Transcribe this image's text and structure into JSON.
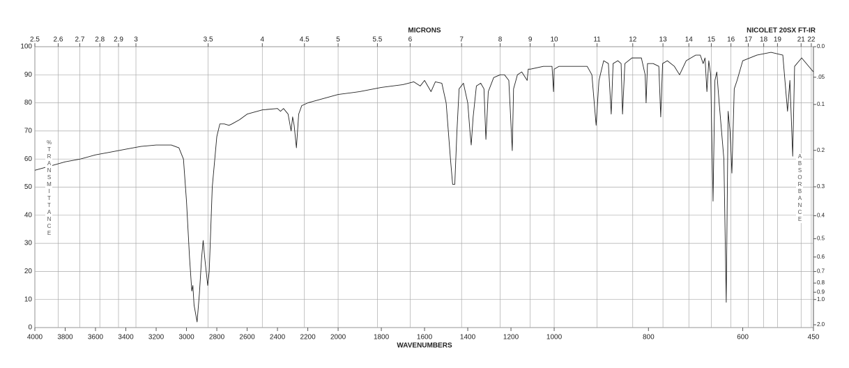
{
  "chart_data": {
    "type": "line",
    "title": "NICOLET 20SX FT-IR",
    "x_label": "WAVENUMBERS",
    "top_axis_label": "MICRONS",
    "y_label": "%TRANSMITTANCE",
    "y2_label": "ABSORBANCE",
    "xlim": [
      4000,
      450
    ],
    "x_scale_breaks": [
      2000,
      1000
    ],
    "ylim": [
      0,
      100
    ],
    "yticks": [
      0,
      10,
      20,
      30,
      40,
      50,
      60,
      70,
      80,
      90,
      100
    ],
    "xticks": [
      4000,
      3800,
      3600,
      3400,
      3200,
      3000,
      2800,
      2600,
      2400,
      2200,
      2000,
      1800,
      1600,
      1400,
      1200,
      1000,
      800,
      600,
      450
    ],
    "micron_ticks": [
      2.5,
      2.6,
      2.7,
      2.8,
      2.9,
      3,
      3.5,
      4,
      4.5,
      5,
      5.5,
      6,
      7,
      8,
      9,
      10,
      11,
      12,
      13,
      14,
      15,
      16,
      17,
      18,
      19,
      21,
      22
    ],
    "y2ticks": [
      {
        "value": 0,
        "label": "0.0"
      },
      {
        "value": 0.05,
        "label": ".05"
      },
      0.1,
      0.2,
      0.3,
      0.4,
      0.5,
      0.6,
      0.7,
      0.8,
      0.9,
      {
        "value": 1,
        "label": "1.0"
      },
      {
        "value": 2,
        "label": "2.0"
      }
    ],
    "grid": true,
    "color": "#222222",
    "x": [
      4000,
      3900,
      3800,
      3700,
      3600,
      3500,
      3400,
      3300,
      3200,
      3100,
      3050,
      3020,
      3000,
      2980,
      2965,
      2958,
      2950,
      2930,
      2915,
      2900,
      2890,
      2880,
      2860,
      2850,
      2830,
      2800,
      2780,
      2750,
      2720,
      2700,
      2650,
      2600,
      2500,
      2400,
      2380,
      2360,
      2330,
      2310,
      2300,
      2290,
      2275,
      2260,
      2240,
      2200,
      2100,
      2000,
      1900,
      1800,
      1700,
      1650,
      1620,
      1600,
      1570,
      1550,
      1520,
      1500,
      1480,
      1470,
      1460,
      1450,
      1440,
      1420,
      1400,
      1390,
      1384,
      1375,
      1360,
      1340,
      1325,
      1316,
      1305,
      1280,
      1250,
      1230,
      1210,
      1194,
      1188,
      1170,
      1150,
      1125,
      1120,
      1110,
      1050,
      1010,
      1003,
      1000,
      990,
      960,
      930,
      920,
      911,
      905,
      895,
      885,
      879,
      875,
      865,
      858,
      855,
      850,
      835,
      815,
      807,
      805,
      802,
      790,
      778,
      774,
      770,
      760,
      745,
      734,
      720,
      700,
      690,
      684,
      680,
      676,
      672,
      668,
      663,
      659,
      655,
      650,
      640,
      635,
      631,
      627,
      623,
      618,
      612,
      600,
      570,
      540,
      515,
      505,
      500,
      494,
      490,
      475,
      450
    ],
    "values": [
      56,
      57.5,
      59,
      60,
      61.5,
      62.5,
      63.5,
      64.5,
      65,
      65,
      64,
      60,
      45,
      25,
      13,
      15,
      8,
      2,
      12,
      25,
      31,
      25,
      15,
      20,
      50,
      68,
      72.5,
      72.5,
      72,
      72.5,
      74,
      76,
      77.5,
      78,
      77,
      78,
      76,
      70,
      75,
      72,
      64,
      76,
      79,
      80,
      81.5,
      83,
      84,
      85.5,
      86.5,
      87.5,
      86,
      88,
      84,
      87.5,
      87,
      80,
      60,
      51,
      51,
      70,
      85,
      87,
      80,
      70,
      65,
      75,
      86,
      87,
      85,
      67,
      84,
      89,
      90,
      90,
      88,
      63,
      85,
      90,
      91,
      88,
      92,
      92,
      93,
      93,
      84,
      92,
      93,
      93,
      93,
      90,
      72,
      88,
      95,
      94,
      76,
      94,
      95,
      94,
      76,
      94,
      96,
      96,
      90,
      80,
      94,
      94,
      93,
      75,
      94,
      95,
      93,
      90,
      95,
      97,
      97,
      94,
      96,
      84,
      95,
      90,
      45,
      88,
      91,
      80,
      60,
      9,
      77,
      70,
      55,
      85,
      88,
      95,
      97,
      98,
      97,
      77,
      88,
      61,
      93,
      96,
      91
    ]
  }
}
